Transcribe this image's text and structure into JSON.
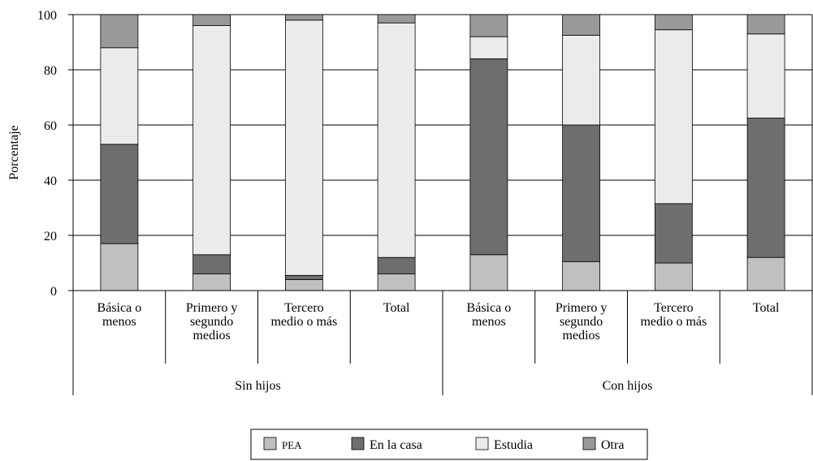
{
  "chart_data": {
    "type": "stacked-bar",
    "y_label": "Porcentaje",
    "groups": [
      {
        "name": "Sin hijos",
        "categories": [
          "Básica o\nmenos",
          "Primero y\nsegundo\nmedios",
          "Tercero\nmedio o más",
          "Total"
        ]
      },
      {
        "name": "Con hijos",
        "categories": [
          "Básica o\nmenos",
          "Primero y\nsegundo\nmedios",
          "Tercero\nmedio o más",
          "Total"
        ]
      }
    ],
    "series": [
      {
        "name": "PEA",
        "color": "#c0c0c0",
        "values": [
          17,
          6,
          4,
          6,
          13,
          10.5,
          10,
          12
        ]
      },
      {
        "name": "En la casa",
        "color": "#6e6e6e",
        "values": [
          36,
          7,
          1.5,
          6,
          71,
          49.5,
          21.5,
          50.5
        ]
      },
      {
        "name": "Estudia",
        "color": "#ebebeb",
        "values": [
          35,
          83,
          92.5,
          85,
          8,
          32.5,
          63,
          30.5
        ]
      },
      {
        "name": "Otra",
        "color": "#999999",
        "values": [
          12,
          4,
          2,
          3,
          8,
          7.5,
          5.5,
          7
        ]
      }
    ],
    "ylim": [
      0,
      100
    ],
    "yticks": [
      0,
      20,
      40,
      60,
      80,
      100
    ],
    "grid": true
  }
}
